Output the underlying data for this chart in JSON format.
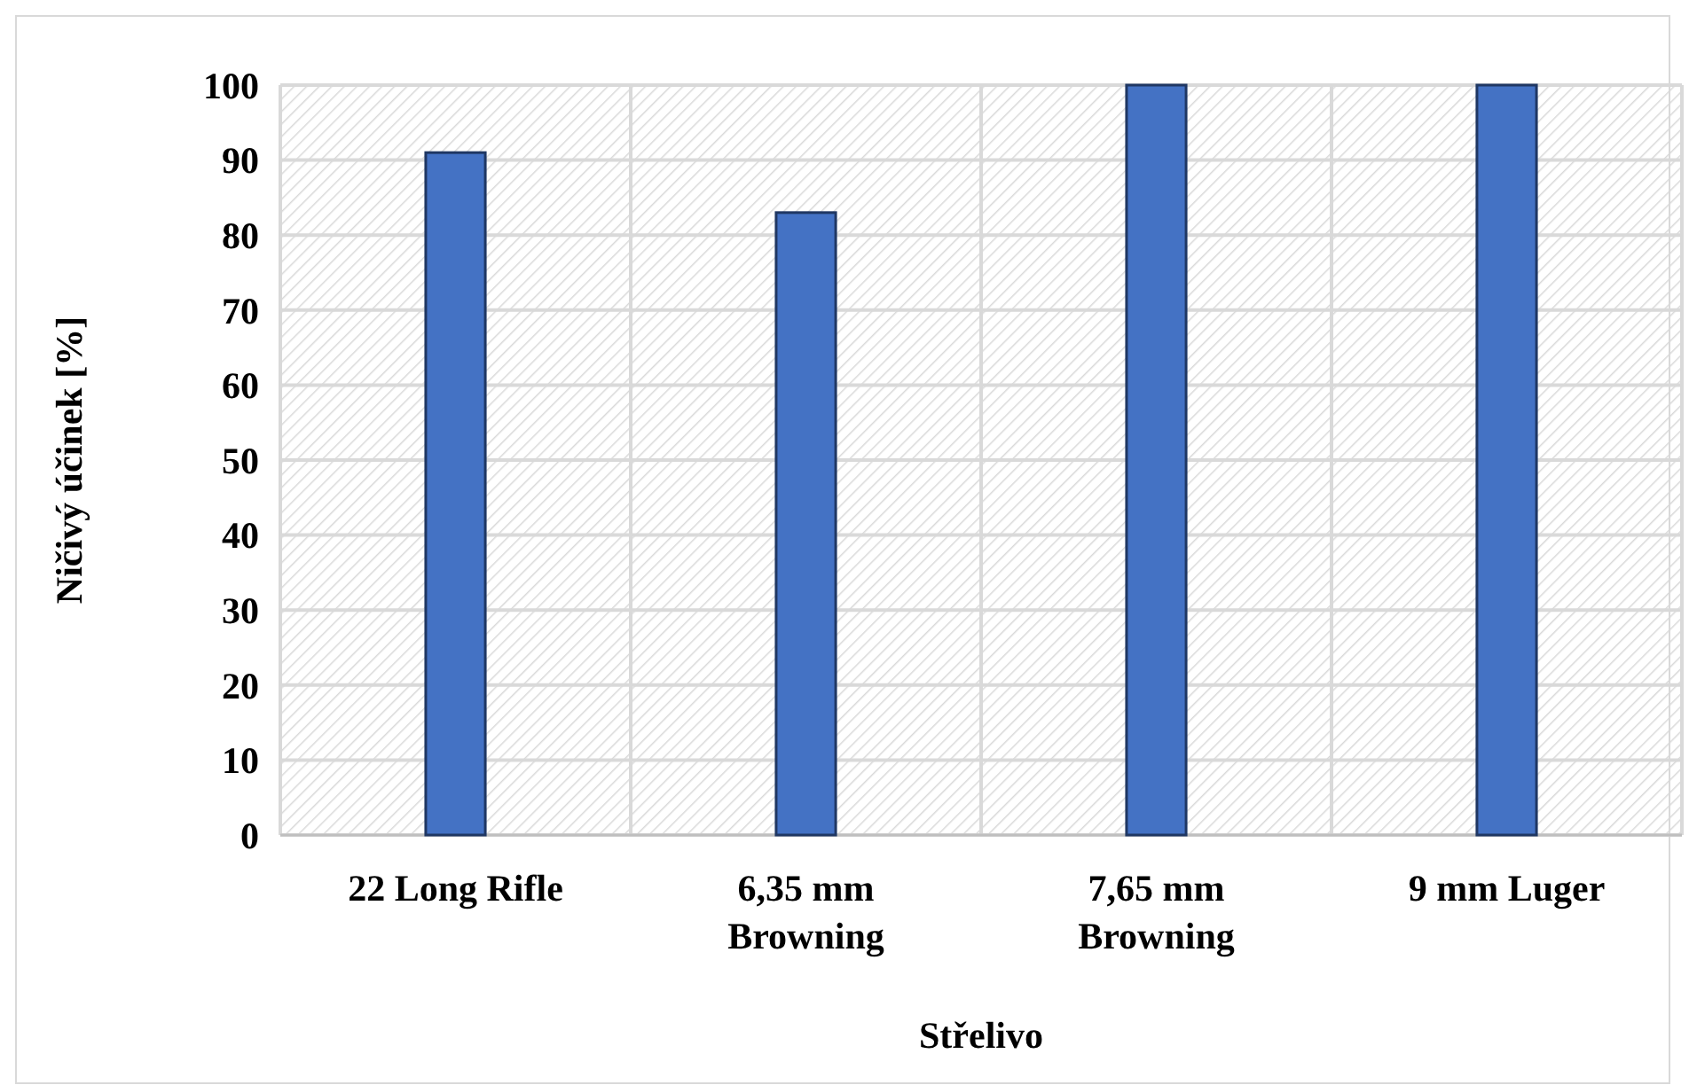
{
  "chart_data": {
    "type": "bar",
    "xlabel": "Střelivo",
    "ylabel": "Ničivý účinek [%]",
    "categories": [
      "22 Long Rifle",
      "6,35 mm Browning",
      "7,65 mm Browning",
      "9 mm Luger"
    ],
    "values": [
      91,
      83,
      100,
      100
    ],
    "color": "#4472c4",
    "ylim": [
      0,
      100
    ],
    "yticks": [
      0,
      10,
      20,
      30,
      40,
      50,
      60,
      70,
      80,
      90,
      100
    ],
    "grid": true
  }
}
